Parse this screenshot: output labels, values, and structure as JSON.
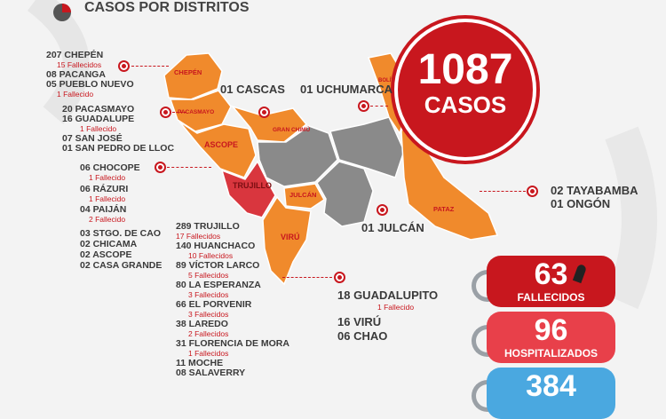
{
  "header": {
    "title": "CASOS POR DISTRITOS"
  },
  "total": {
    "number": "1087",
    "label": "CASOS"
  },
  "left_list": [
    {
      "main": "207 CHEPÉN",
      "sub": "15 Fallecidos"
    },
    {
      "main": "08 PACANGA"
    },
    {
      "main": "05 PUEBLO NUEVO",
      "sub": "1 Fallecido"
    },
    {
      "main": "20 PACASMAYO"
    },
    {
      "main": "16 GUADALUPE",
      "sub": "1 Fallecido"
    },
    {
      "main": "07 SAN JOSÉ"
    },
    {
      "main": "01 SAN PEDRO DE LLOC"
    },
    {
      "main": "06 CHOCOPE",
      "sub": "1 Fallecido"
    },
    {
      "main": "06 RÁZURI",
      "sub": "1 Fallecido"
    },
    {
      "main": "04 PAIJÁN",
      "sub": "2 Fallecido"
    },
    {
      "main": "03 STGO. DE CAO"
    },
    {
      "main": "02 CHICAMA"
    },
    {
      "main": "02 ASCOPE"
    },
    {
      "main": "02 CASA GRANDE"
    }
  ],
  "trujillo_list": [
    {
      "main": "289 TRUJILLO",
      "sub": "17 Fallecidos"
    },
    {
      "main": "140 HUANCHACO",
      "sub": "10 Fallecidos"
    },
    {
      "main": "89 VÍCTOR LARCO",
      "sub": "5 Fallecidos"
    },
    {
      "main": "80 LA ESPERANZA",
      "sub": "3 Fallecidos"
    },
    {
      "main": "66 EL PORVENIR",
      "sub": "3 Fallecidos"
    },
    {
      "main": "38 LAREDO",
      "sub": "2 Fallecidos"
    },
    {
      "main": "31 FLORENCIA DE MORA",
      "sub": "1 Fallecidos"
    },
    {
      "main": "11 MOCHE"
    },
    {
      "main": "08 SALAVERRY"
    }
  ],
  "callouts": {
    "cascas": "01 CASCAS",
    "uchumarca": "01 UCHUMARCA",
    "julcan": "01 JULCÁN",
    "tayabamba": "02 TAYABAMBA",
    "ongon": "01 ONGÓN",
    "guadalupito": "18 GUADALUPITO",
    "guadalupito_sub": "1 Fallecido",
    "viru": "16 VIRÚ",
    "chao": "06 CHAO"
  },
  "map_labels": {
    "chepen": "CHEPÉN",
    "pacasmayo": "PACASMAYO",
    "ascope": "ASCOPE",
    "gran_chimu": "GRAN CHIMÚ",
    "trujillo": "TRUJILLO",
    "julcan": "JULCÁN",
    "viru": "VIRÚ",
    "pataz": "PATAZ",
    "bolivar": "BOLÍVAR"
  },
  "stats": [
    {
      "number": "63",
      "label": "FALLECIDOS",
      "color": "#c8171e"
    },
    {
      "number": "96",
      "label": "HOSPITALIZADOS",
      "color": "#e8404a"
    },
    {
      "number": "384",
      "label": "",
      "color": "#4aa8e0"
    }
  ],
  "colors": {
    "orange": "#f08a2c",
    "red": "#c8171e",
    "gray": "#8a8a8a"
  }
}
